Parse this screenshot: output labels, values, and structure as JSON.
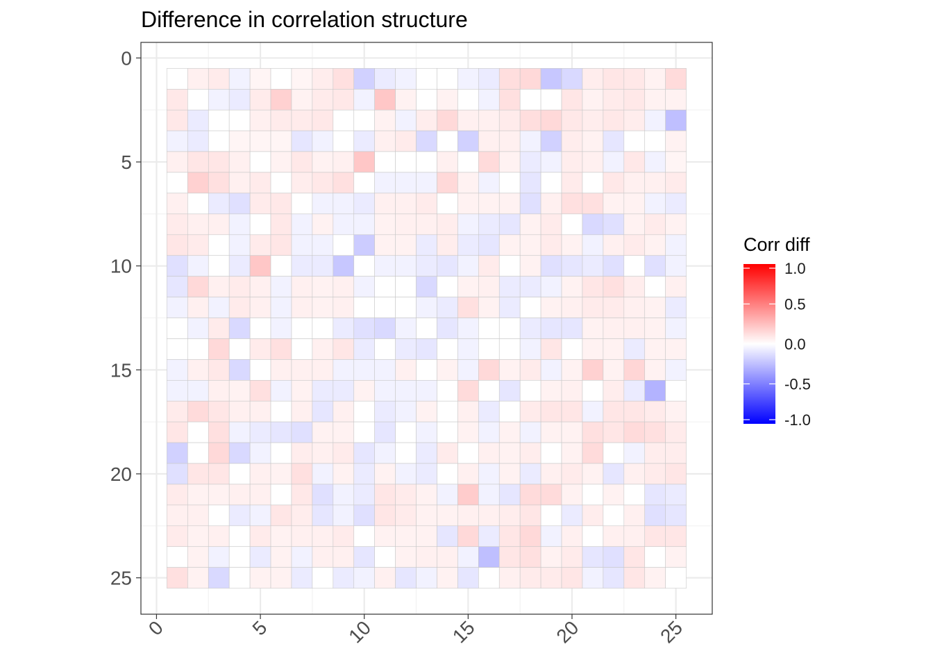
{
  "chart_data": {
    "type": "heatmap",
    "title": "Difference in correlation structure",
    "xlabel": "",
    "ylabel": "",
    "xlim": [
      -0.75,
      26.75
    ],
    "ylim": [
      26.75,
      -0.75
    ],
    "x_ticks": [
      0,
      5,
      10,
      15,
      20,
      25
    ],
    "x_tick_labels": [
      "0",
      "5",
      "10",
      "15",
      "20",
      "25"
    ],
    "y_ticks": [
      0,
      5,
      10,
      15,
      20,
      25
    ],
    "y_tick_labels": [
      "0",
      "5",
      "10",
      "15",
      "20",
      "25"
    ],
    "grid": true,
    "legend": {
      "title": "Corr diff",
      "position": "right",
      "range": [
        -1.0,
        1.0
      ],
      "breaks": [
        1.0,
        0.5,
        0.0,
        -0.5,
        -1.0
      ],
      "labels": [
        "1.0",
        "0.5",
        "0.0",
        "-0.5",
        "-1.0"
      ]
    },
    "colors": {
      "low": "#0000ff",
      "mid": "#ffffff",
      "high": "#ff0000"
    },
    "n_rows": 25,
    "n_cols": 25,
    "row_start": 1,
    "col_start": 1,
    "values": [
      [
        0.0,
        0.06,
        0.08,
        -0.05,
        0.04,
        0.0,
        0.04,
        0.07,
        0.12,
        -0.18,
        -0.08,
        -0.05,
        0.0,
        0.0,
        -0.05,
        -0.08,
        0.13,
        0.15,
        -0.22,
        -0.15,
        0.07,
        0.1,
        0.09,
        0.05,
        0.14
      ],
      [
        0.09,
        0.0,
        -0.05,
        -0.08,
        0.08,
        0.18,
        0.05,
        0.08,
        0.09,
        -0.05,
        0.22,
        0.05,
        0.0,
        0.05,
        0.0,
        -0.05,
        0.12,
        0.0,
        0.0,
        0.1,
        0.05,
        0.08,
        0.09,
        0.05,
        0.05
      ],
      [
        0.09,
        -0.08,
        0.0,
        0.0,
        0.06,
        0.08,
        0.08,
        0.09,
        0.0,
        0.0,
        0.05,
        -0.05,
        0.07,
        0.15,
        0.06,
        0.06,
        0.08,
        0.13,
        0.15,
        0.09,
        0.07,
        0.09,
        0.07,
        -0.05,
        -0.25
      ],
      [
        -0.05,
        -0.08,
        0.0,
        0.04,
        0.04,
        0.04,
        -0.1,
        -0.05,
        0.0,
        -0.08,
        0.06,
        0.08,
        -0.15,
        0.0,
        -0.18,
        0.06,
        0.06,
        -0.05,
        -0.18,
        0.07,
        0.05,
        -0.1,
        0.0,
        0.0,
        0.05
      ],
      [
        0.06,
        0.1,
        0.1,
        0.06,
        0.0,
        0.05,
        0.09,
        0.05,
        0.06,
        0.22,
        0.0,
        0.0,
        0.0,
        0.06,
        0.0,
        0.14,
        0.05,
        -0.08,
        -0.05,
        0.07,
        0.06,
        -0.05,
        0.09,
        -0.05,
        0.04
      ],
      [
        0.0,
        0.18,
        0.12,
        0.06,
        0.08,
        0.0,
        0.07,
        0.09,
        0.12,
        0.0,
        -0.05,
        -0.05,
        -0.05,
        0.15,
        0.05,
        -0.05,
        0.0,
        -0.1,
        0.0,
        0.08,
        0.0,
        0.09,
        0.06,
        0.06,
        0.08
      ],
      [
        0.06,
        0.0,
        -0.08,
        -0.12,
        0.08,
        0.09,
        0.0,
        -0.05,
        -0.05,
        -0.08,
        0.06,
        0.06,
        0.08,
        0.0,
        0.05,
        0.05,
        0.05,
        -0.12,
        0.06,
        0.12,
        0.12,
        0.05,
        0.05,
        -0.05,
        -0.08
      ],
      [
        0.08,
        0.06,
        0.06,
        -0.05,
        0.0,
        0.09,
        -0.05,
        0.05,
        -0.05,
        -0.05,
        0.05,
        0.06,
        0.06,
        0.07,
        -0.05,
        -0.08,
        -0.1,
        0.05,
        0.08,
        0.0,
        -0.15,
        -0.12,
        0.05,
        0.08,
        0.05
      ],
      [
        0.1,
        0.08,
        0.0,
        -0.05,
        0.08,
        0.1,
        -0.05,
        -0.05,
        0.0,
        -0.2,
        0.05,
        0.05,
        -0.08,
        0.07,
        -0.08,
        -0.1,
        0.05,
        0.05,
        0.08,
        0.05,
        -0.05,
        0.06,
        0.08,
        0.05,
        -0.05
      ],
      [
        -0.12,
        -0.05,
        0.0,
        -0.08,
        0.22,
        0.0,
        -0.08,
        -0.08,
        -0.22,
        0.0,
        -0.05,
        -0.05,
        -0.08,
        -0.1,
        -0.05,
        0.08,
        0.0,
        0.05,
        -0.12,
        -0.1,
        -0.08,
        -0.12,
        0.0,
        -0.12,
        -0.05
      ],
      [
        -0.1,
        0.15,
        0.06,
        0.08,
        0.06,
        -0.05,
        0.06,
        0.05,
        0.06,
        -0.05,
        0.0,
        0.0,
        -0.15,
        0.0,
        0.05,
        0.06,
        -0.08,
        -0.08,
        -0.05,
        0.05,
        0.1,
        0.12,
        0.07,
        0.0,
        0.06
      ],
      [
        -0.05,
        0.06,
        -0.05,
        0.08,
        0.06,
        -0.05,
        0.06,
        0.05,
        0.06,
        0.0,
        0.0,
        0.0,
        -0.05,
        -0.08,
        0.12,
        0.05,
        -0.08,
        0.0,
        0.05,
        0.06,
        0.08,
        0.08,
        0.06,
        0.05,
        -0.08
      ],
      [
        0.0,
        -0.05,
        0.08,
        -0.15,
        0.0,
        -0.05,
        0.0,
        0.0,
        -0.08,
        -0.12,
        -0.15,
        -0.05,
        0.0,
        -0.1,
        -0.05,
        0.0,
        0.0,
        -0.08,
        -0.1,
        -0.1,
        0.05,
        0.06,
        0.06,
        0.05,
        -0.05
      ],
      [
        0.0,
        0.0,
        0.15,
        0.0,
        0.08,
        0.12,
        0.0,
        0.06,
        0.1,
        -0.08,
        0.0,
        -0.08,
        -0.1,
        0.0,
        -0.05,
        0.0,
        0.0,
        -0.05,
        0.1,
        0.0,
        0.05,
        0.05,
        -0.08,
        0.05,
        0.05
      ],
      [
        -0.05,
        0.06,
        0.09,
        -0.15,
        0.0,
        0.06,
        0.06,
        0.06,
        -0.05,
        -0.05,
        -0.05,
        0.06,
        0.0,
        0.05,
        -0.05,
        0.15,
        0.05,
        0.08,
        -0.05,
        0.05,
        0.18,
        0.05,
        0.16,
        0.05,
        -0.05
      ],
      [
        -0.05,
        -0.05,
        0.06,
        0.05,
        0.12,
        -0.05,
        0.05,
        -0.08,
        -0.08,
        0.05,
        -0.05,
        -0.05,
        -0.05,
        0.0,
        0.14,
        0.0,
        -0.1,
        0.0,
        0.05,
        0.06,
        0.0,
        0.07,
        -0.08,
        -0.3,
        0.0
      ],
      [
        0.08,
        0.14,
        0.1,
        0.06,
        0.06,
        0.0,
        0.06,
        -0.1,
        0.06,
        0.0,
        -0.08,
        -0.05,
        0.05,
        0.0,
        0.06,
        -0.08,
        0.0,
        0.08,
        0.1,
        0.1,
        -0.05,
        0.1,
        0.1,
        0.08,
        0.05
      ],
      [
        0.1,
        0.0,
        0.12,
        -0.05,
        -0.08,
        -0.1,
        -0.12,
        0.05,
        0.05,
        0.0,
        -0.1,
        0.0,
        -0.05,
        0.0,
        0.05,
        -0.05,
        0.05,
        -0.05,
        0.05,
        0.05,
        0.12,
        0.1,
        0.14,
        0.12,
        0.08
      ],
      [
        -0.18,
        0.0,
        0.15,
        -0.15,
        -0.05,
        0.0,
        0.07,
        0.06,
        0.08,
        -0.1,
        -0.05,
        0.0,
        -0.08,
        0.08,
        0.0,
        0.06,
        0.05,
        0.07,
        0.0,
        0.05,
        0.14,
        0.0,
        -0.05,
        0.07,
        0.07
      ],
      [
        -0.12,
        0.1,
        0.1,
        0.0,
        0.06,
        0.05,
        0.12,
        -0.05,
        0.05,
        -0.08,
        0.05,
        -0.05,
        -0.08,
        0.0,
        0.06,
        -0.05,
        0.05,
        -0.08,
        0.06,
        0.08,
        0.05,
        -0.1,
        0.06,
        0.08,
        0.1
      ],
      [
        0.08,
        0.05,
        0.05,
        0.06,
        0.06,
        0.0,
        0.09,
        -0.12,
        -0.05,
        -0.08,
        0.1,
        0.08,
        0.05,
        -0.05,
        0.2,
        -0.05,
        -0.1,
        0.14,
        0.14,
        0.05,
        0.0,
        0.05,
        0.0,
        -0.1,
        -0.08
      ],
      [
        0.06,
        0.06,
        0.0,
        -0.08,
        -0.05,
        0.1,
        0.07,
        -0.1,
        -0.05,
        -0.12,
        0.1,
        0.08,
        0.05,
        0.05,
        0.06,
        0.06,
        0.07,
        0.1,
        0.0,
        -0.08,
        0.07,
        0.0,
        0.06,
        -0.12,
        -0.1
      ],
      [
        0.08,
        0.05,
        0.06,
        0.0,
        0.08,
        0.05,
        0.06,
        0.06,
        0.08,
        0.0,
        0.05,
        0.05,
        0.05,
        -0.1,
        0.15,
        -0.08,
        0.1,
        0.15,
        -0.05,
        0.06,
        0.0,
        0.06,
        0.06,
        0.1,
        0.1
      ],
      [
        0.0,
        0.05,
        -0.05,
        0.0,
        -0.08,
        0.05,
        -0.05,
        0.06,
        0.06,
        -0.1,
        0.0,
        0.05,
        0.06,
        0.06,
        -0.05,
        -0.25,
        0.1,
        0.12,
        0.05,
        0.08,
        -0.1,
        -0.12,
        0.1,
        0.0,
        0.05
      ],
      [
        0.12,
        0.05,
        -0.15,
        0.0,
        0.05,
        0.05,
        -0.08,
        0.0,
        -0.08,
        -0.05,
        0.06,
        -0.1,
        -0.05,
        0.05,
        -0.1,
        0.0,
        0.06,
        0.08,
        0.08,
        0.1,
        -0.05,
        -0.1,
        0.1,
        0.05,
        0.0
      ]
    ]
  }
}
